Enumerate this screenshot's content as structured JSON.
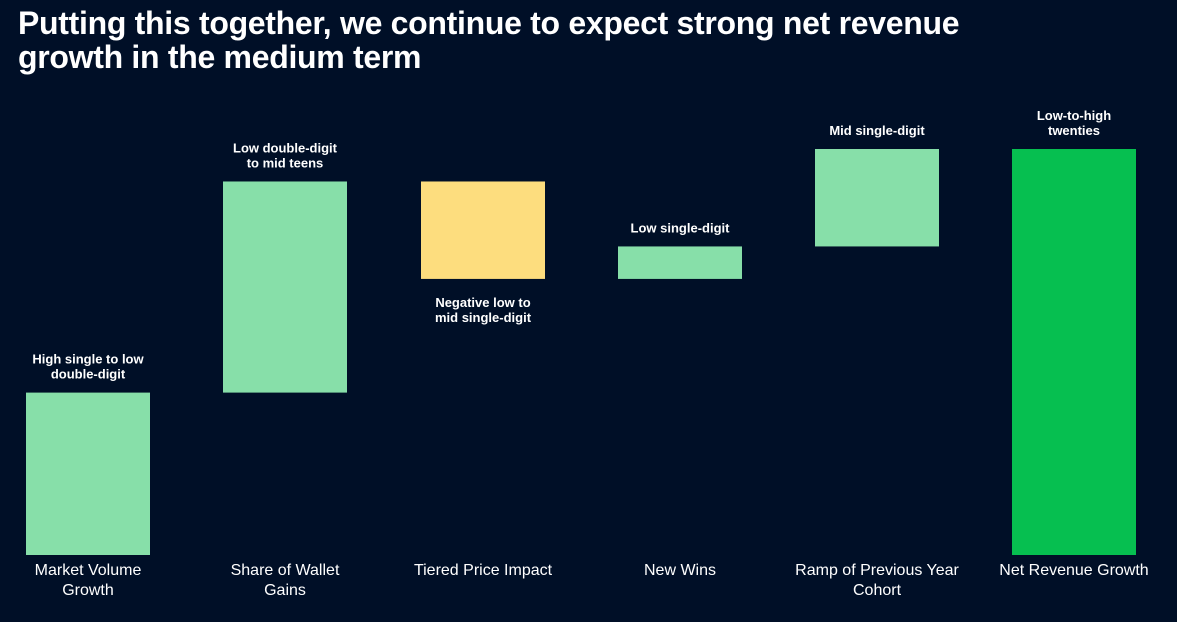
{
  "page": {
    "title": "Putting this together, we continue to expect strong net revenue growth in the medium term"
  },
  "colors": {
    "background": "#000f27",
    "increase": "#87dfa9",
    "decrease": "#fddd7e",
    "total": "#06bf50",
    "text": "#ffffff"
  },
  "chart_data": {
    "type": "bar",
    "subtype": "waterfall",
    "title": "Putting this together, we continue to expect strong net revenue growth in the medium term",
    "xlabel": "",
    "ylabel": "",
    "grid": false,
    "legend": "none",
    "ylim": [
      0,
      25
    ],
    "categories": [
      [
        "Market Volume",
        "Growth"
      ],
      [
        "Share of Wallet",
        "Gains"
      ],
      [
        "Tiered Price Impact"
      ],
      [
        "New Wins"
      ],
      [
        "Ramp of Previous Year",
        "Cohort"
      ],
      [
        "Net Revenue Growth"
      ]
    ],
    "bars": [
      {
        "start": 0,
        "end": 10,
        "kind": "increase",
        "label_pos": "above",
        "label": [
          "High single to low",
          "double-digit"
        ]
      },
      {
        "start": 10,
        "end": 23,
        "kind": "increase",
        "label_pos": "above",
        "label": [
          "Low double-digit",
          "to mid teens"
        ]
      },
      {
        "start": 23,
        "end": 17,
        "kind": "decrease",
        "label_pos": "below",
        "label": [
          "Negative low to",
          "mid single-digit"
        ]
      },
      {
        "start": 17,
        "end": 19,
        "kind": "increase",
        "label_pos": "above",
        "label": [
          "Low single-digit"
        ]
      },
      {
        "start": 19,
        "end": 25,
        "kind": "increase",
        "label_pos": "above",
        "label": [
          "Mid single-digit"
        ]
      },
      {
        "start": 0,
        "end": 25,
        "kind": "total",
        "label_pos": "above",
        "label": [
          "Low-to-high",
          "twenties"
        ]
      }
    ]
  }
}
